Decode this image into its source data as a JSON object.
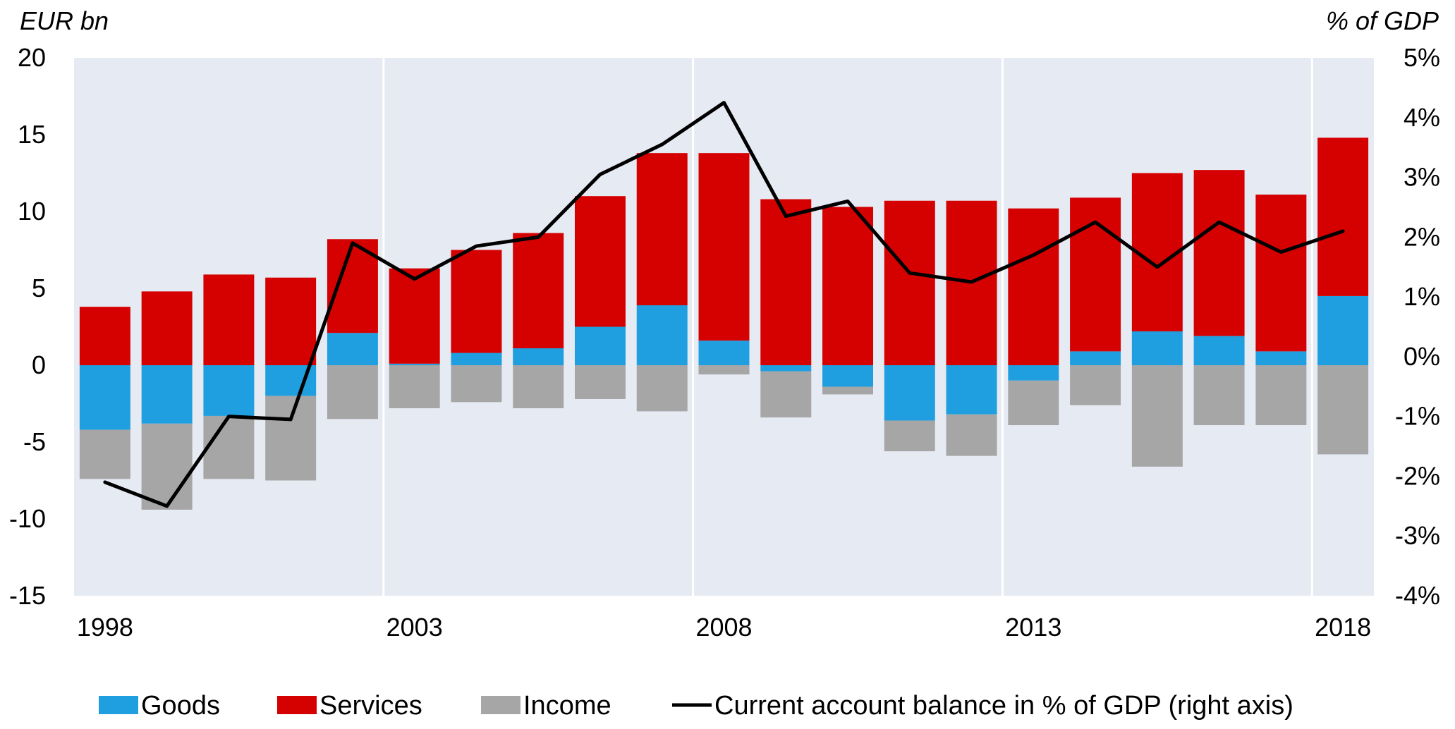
{
  "chart_data": {
    "type": "bar",
    "stacked": true,
    "title": "",
    "y_left_unit": "EUR bn",
    "y_right_unit": "% of GDP",
    "ylim_left": [
      -15,
      20
    ],
    "ylim_right": [
      -4,
      5
    ],
    "y_left_ticks": [
      "20",
      "15",
      "10",
      "5",
      "0",
      "-5",
      "-10",
      "-15"
    ],
    "y_right_ticks": [
      "5%",
      "4%",
      "3%",
      "2%",
      "1%",
      "0%",
      "-1%",
      "-2%",
      "-3%",
      "-4%"
    ],
    "x_tick_labels": [
      "1998",
      "2003",
      "2008",
      "2013",
      "2018"
    ],
    "grid": "vertical lines at 2003, 2008, 2013, 2018",
    "background_color": "#e6eaf2",
    "categories": [
      1998,
      1999,
      2000,
      2001,
      2002,
      2003,
      2004,
      2005,
      2006,
      2007,
      2008,
      2009,
      2010,
      2011,
      2012,
      2013,
      2014,
      2015,
      2016,
      2017,
      2018
    ],
    "series": [
      {
        "name": "Goods",
        "color": "#1f9fe0",
        "values": [
          -4.2,
          -3.8,
          -3.3,
          -2.0,
          2.1,
          0.1,
          0.8,
          1.1,
          2.5,
          3.9,
          1.6,
          -0.4,
          -1.4,
          -3.6,
          -3.2,
          -1.0,
          0.9,
          2.2,
          1.9,
          0.9,
          4.5
        ]
      },
      {
        "name": "Services",
        "color": "#d50000",
        "values": [
          3.8,
          4.8,
          5.9,
          5.7,
          6.1,
          6.2,
          6.7,
          7.5,
          8.5,
          9.9,
          12.2,
          10.8,
          10.3,
          10.7,
          10.7,
          10.2,
          10.0,
          10.3,
          10.8,
          10.2,
          10.3
        ]
      },
      {
        "name": "Income",
        "color": "#a6a6a6",
        "values": [
          -3.2,
          -5.6,
          -4.1,
          -5.5,
          -3.5,
          -2.8,
          -2.4,
          -2.8,
          -2.2,
          -3.0,
          -0.6,
          -3.0,
          -0.5,
          -2.0,
          -2.7,
          -2.9,
          -2.6,
          -6.6,
          -3.9,
          -3.9,
          -5.8
        ]
      },
      {
        "name": "Current account balance in % of GDP (right axis)",
        "color": "#000000",
        "axis": "right",
        "values": [
          -2.1,
          -2.5,
          -1.0,
          -1.05,
          1.9,
          1.3,
          1.85,
          2.0,
          3.05,
          3.55,
          4.25,
          2.35,
          2.6,
          1.4,
          1.25,
          1.7,
          2.25,
          1.5,
          2.25,
          1.75,
          2.1
        ]
      }
    ],
    "legend": {
      "position": "bottom",
      "items": [
        {
          "label": "Goods",
          "color": "#1f9fe0",
          "kind": "box"
        },
        {
          "label": "Services",
          "color": "#d50000",
          "kind": "box"
        },
        {
          "label": "Income",
          "color": "#a6a6a6",
          "kind": "box"
        },
        {
          "label": "Current account balance in % of GDP (right axis)",
          "color": "#000000",
          "kind": "line"
        }
      ]
    }
  }
}
